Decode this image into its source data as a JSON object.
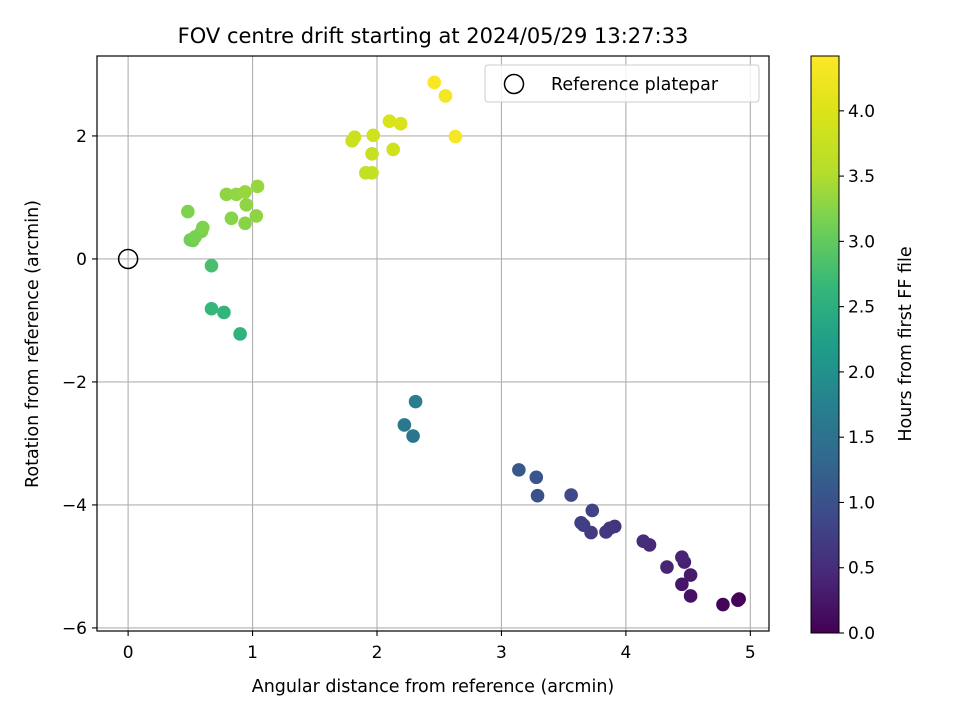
{
  "chart_data": {
    "type": "scatter",
    "title": "FOV centre drift starting at 2024/05/29 13:27:33",
    "xlabel": "Angular distance from reference (arcmin)",
    "ylabel": "Rotation from reference (arcmin)",
    "xlim": [
      -0.25,
      5.15
    ],
    "ylim": [
      -6.05,
      3.3
    ],
    "xticks": [
      0,
      1,
      2,
      3,
      4,
      5
    ],
    "yticks": [
      -6,
      -4,
      -2,
      0,
      2
    ],
    "ytick_labels": [
      "−6",
      "−4",
      "−2",
      "0",
      "2"
    ],
    "grid": true,
    "legend": {
      "position": "top-right",
      "entries": [
        "Reference platepar"
      ]
    },
    "reference_point": {
      "x": 0,
      "y": 0,
      "label": "Reference platepar"
    },
    "colorbar": {
      "label": "Hours from first FF file",
      "colormap": "viridis",
      "range": [
        0.0,
        4.42
      ],
      "ticks": [
        0.0,
        0.5,
        1.0,
        1.5,
        2.0,
        2.5,
        3.0,
        3.5,
        4.0
      ],
      "tick_labels": [
        "0.0",
        "0.5",
        "1.0",
        "1.5",
        "2.0",
        "2.5",
        "3.0",
        "3.5",
        "4.0"
      ]
    },
    "points": [
      {
        "x": 4.91,
        "y": -5.53,
        "hours": 0.0
      },
      {
        "x": 4.9,
        "y": -5.55,
        "hours": 0.02
      },
      {
        "x": 4.78,
        "y": -5.62,
        "hours": 0.05
      },
      {
        "x": 4.52,
        "y": -5.48,
        "hours": 0.2
      },
      {
        "x": 4.52,
        "y": -5.14,
        "hours": 0.3
      },
      {
        "x": 4.45,
        "y": -5.29,
        "hours": 0.25
      },
      {
        "x": 4.47,
        "y": -4.93,
        "hours": 0.35
      },
      {
        "x": 4.45,
        "y": -4.85,
        "hours": 0.4
      },
      {
        "x": 4.33,
        "y": -5.01,
        "hours": 0.4
      },
      {
        "x": 4.19,
        "y": -4.65,
        "hours": 0.45
      },
      {
        "x": 4.14,
        "y": -4.59,
        "hours": 0.5
      },
      {
        "x": 3.91,
        "y": -4.35,
        "hours": 0.6
      },
      {
        "x": 3.87,
        "y": -4.38,
        "hours": 0.62
      },
      {
        "x": 3.84,
        "y": -4.44,
        "hours": 0.65
      },
      {
        "x": 3.72,
        "y": -4.45,
        "hours": 0.68
      },
      {
        "x": 3.66,
        "y": -4.33,
        "hours": 0.72
      },
      {
        "x": 3.64,
        "y": -4.29,
        "hours": 0.75
      },
      {
        "x": 3.73,
        "y": -4.09,
        "hours": 0.8
      },
      {
        "x": 3.56,
        "y": -3.84,
        "hours": 0.9
      },
      {
        "x": 3.29,
        "y": -3.85,
        "hours": 1.0
      },
      {
        "x": 3.28,
        "y": -3.55,
        "hours": 1.05
      },
      {
        "x": 3.14,
        "y": -3.43,
        "hours": 1.1
      },
      {
        "x": 2.29,
        "y": -2.88,
        "hours": 1.55
      },
      {
        "x": 2.22,
        "y": -2.7,
        "hours": 1.6
      },
      {
        "x": 2.31,
        "y": -2.32,
        "hours": 1.7
      },
      {
        "x": 0.9,
        "y": -1.22,
        "hours": 2.55
      },
      {
        "x": 0.77,
        "y": -0.87,
        "hours": 2.6
      },
      {
        "x": 0.67,
        "y": -0.81,
        "hours": 2.65
      },
      {
        "x": 0.67,
        "y": -0.11,
        "hours": 2.8
      },
      {
        "x": 0.52,
        "y": 0.3,
        "hours": 3.1
      },
      {
        "x": 0.5,
        "y": 0.31,
        "hours": 3.1
      },
      {
        "x": 0.54,
        "y": 0.36,
        "hours": 3.15
      },
      {
        "x": 0.59,
        "y": 0.45,
        "hours": 3.15
      },
      {
        "x": 0.6,
        "y": 0.51,
        "hours": 3.2
      },
      {
        "x": 0.48,
        "y": 0.77,
        "hours": 3.2
      },
      {
        "x": 0.83,
        "y": 0.66,
        "hours": 3.25
      },
      {
        "x": 0.94,
        "y": 0.58,
        "hours": 3.25
      },
      {
        "x": 1.03,
        "y": 0.7,
        "hours": 3.3
      },
      {
        "x": 0.95,
        "y": 0.88,
        "hours": 3.3
      },
      {
        "x": 0.79,
        "y": 1.05,
        "hours": 3.3
      },
      {
        "x": 0.87,
        "y": 1.05,
        "hours": 3.32
      },
      {
        "x": 0.94,
        "y": 1.09,
        "hours": 3.35
      },
      {
        "x": 1.04,
        "y": 1.18,
        "hours": 3.35
      },
      {
        "x": 1.91,
        "y": 1.4,
        "hours": 3.7
      },
      {
        "x": 1.96,
        "y": 1.4,
        "hours": 3.72
      },
      {
        "x": 1.96,
        "y": 1.71,
        "hours": 3.75
      },
      {
        "x": 2.13,
        "y": 1.78,
        "hours": 3.85
      },
      {
        "x": 1.8,
        "y": 1.92,
        "hours": 3.8
      },
      {
        "x": 1.82,
        "y": 1.98,
        "hours": 3.8
      },
      {
        "x": 1.97,
        "y": 2.01,
        "hours": 3.85
      },
      {
        "x": 2.1,
        "y": 2.24,
        "hours": 3.95
      },
      {
        "x": 2.19,
        "y": 2.2,
        "hours": 3.95
      },
      {
        "x": 2.63,
        "y": 1.99,
        "hours": 4.35
      },
      {
        "x": 2.55,
        "y": 2.65,
        "hours": 4.3
      },
      {
        "x": 2.46,
        "y": 2.87,
        "hours": 4.38
      }
    ]
  }
}
